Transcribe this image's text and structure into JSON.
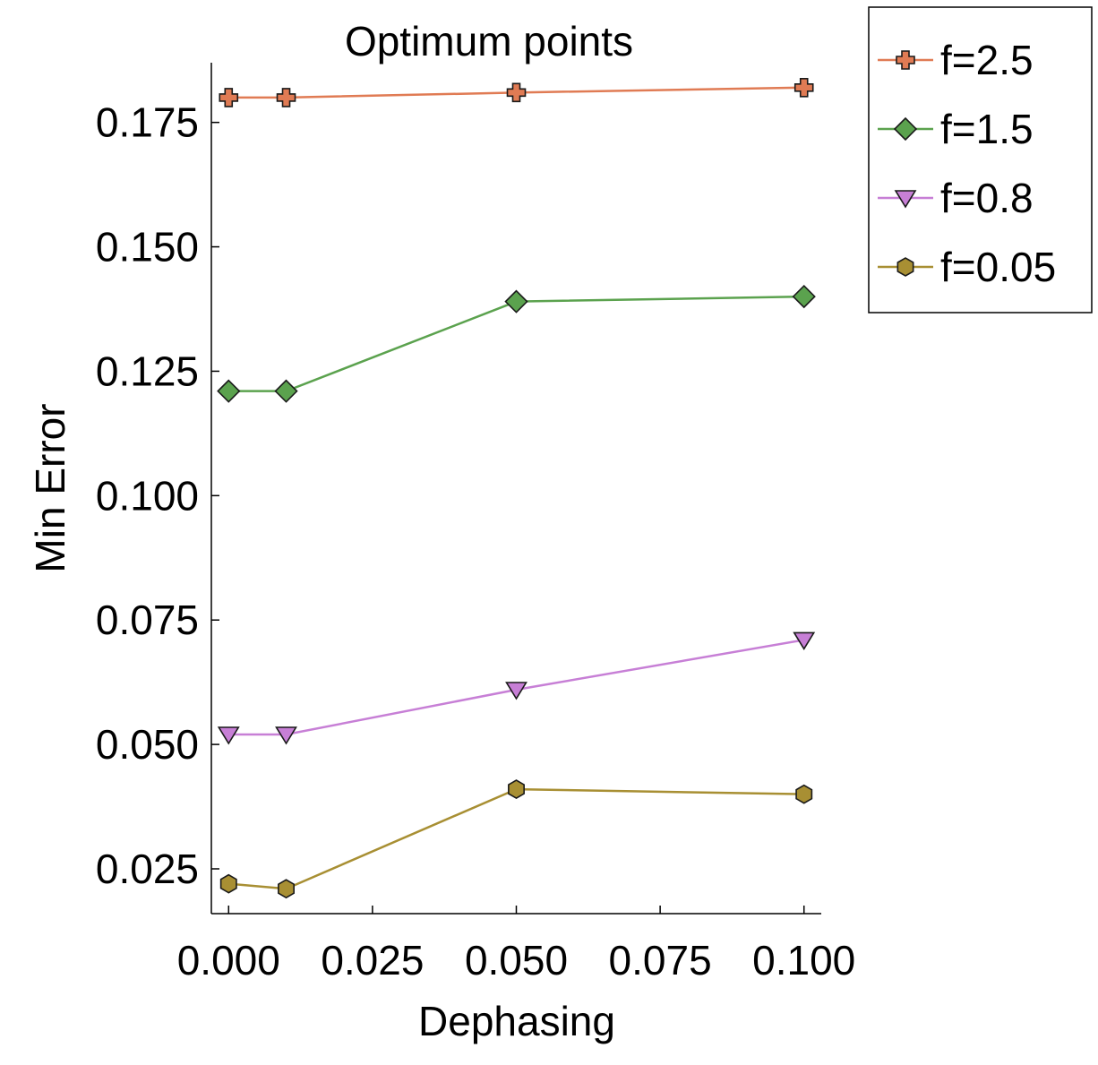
{
  "chart_data": {
    "type": "line",
    "title": "Optimum points",
    "xlabel": "Dephasing",
    "ylabel": "Min Error",
    "x": [
      0.0,
      0.01,
      0.05,
      0.1
    ],
    "xlim": [
      -0.003,
      0.103
    ],
    "ylim": [
      0.016,
      0.187
    ],
    "xticks": [
      0.0,
      0.025,
      0.05,
      0.075,
      0.1
    ],
    "xtick_labels": [
      "0.000",
      "0.025",
      "0.050",
      "0.075",
      "0.100"
    ],
    "yticks": [
      0.025,
      0.05,
      0.075,
      0.1,
      0.125,
      0.15,
      0.175
    ],
    "ytick_labels": [
      "0.025",
      "0.050",
      "0.075",
      "0.100",
      "0.125",
      "0.150",
      "0.175"
    ],
    "grid": false,
    "legend_position": "outside-top-right",
    "series": [
      {
        "name": "f=2.5",
        "marker": "plus",
        "color": "#e07b54",
        "values": [
          0.18,
          0.18,
          0.181,
          0.182
        ]
      },
      {
        "name": "f=1.5",
        "marker": "diamond",
        "color": "#5ba24e",
        "values": [
          0.121,
          0.121,
          0.139,
          0.14
        ]
      },
      {
        "name": "f=0.8",
        "marker": "triangle-down",
        "color": "#c77fd6",
        "values": [
          0.052,
          0.052,
          0.061,
          0.071
        ]
      },
      {
        "name": "f=0.05",
        "marker": "hexagon",
        "color": "#a88f33",
        "values": [
          0.022,
          0.021,
          0.041,
          0.04
        ]
      }
    ]
  }
}
